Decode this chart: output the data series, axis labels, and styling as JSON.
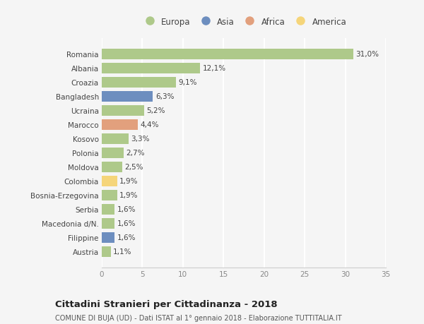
{
  "countries": [
    "Romania",
    "Albania",
    "Croazia",
    "Bangladesh",
    "Ucraina",
    "Marocco",
    "Kosovo",
    "Polonia",
    "Moldova",
    "Colombia",
    "Bosnia-Erzegovina",
    "Serbia",
    "Macedonia d/N.",
    "Filippine",
    "Austria"
  ],
  "values": [
    31.0,
    12.1,
    9.1,
    6.3,
    5.2,
    4.4,
    3.3,
    2.7,
    2.5,
    1.9,
    1.9,
    1.6,
    1.6,
    1.6,
    1.1
  ],
  "continents": [
    "Europa",
    "Europa",
    "Europa",
    "Asia",
    "Europa",
    "Africa",
    "Europa",
    "Europa",
    "Europa",
    "America",
    "Europa",
    "Europa",
    "Europa",
    "Asia",
    "Europa"
  ],
  "continent_colors": {
    "Europa": "#aec98a",
    "Asia": "#6d8ebf",
    "Africa": "#e2a07d",
    "America": "#f5d57a"
  },
  "legend_order": [
    "Europa",
    "Asia",
    "Africa",
    "America"
  ],
  "title": "Cittadini Stranieri per Cittadinanza - 2018",
  "subtitle": "COMUNE DI BUJA (UD) - Dati ISTAT al 1° gennaio 2018 - Elaborazione TUTTITALIA.IT",
  "xlim": [
    0,
    35
  ],
  "xticks": [
    0,
    5,
    10,
    15,
    20,
    25,
    30,
    35
  ],
  "background_color": "#f5f5f5",
  "grid_color": "#ffffff",
  "bar_height": 0.75
}
